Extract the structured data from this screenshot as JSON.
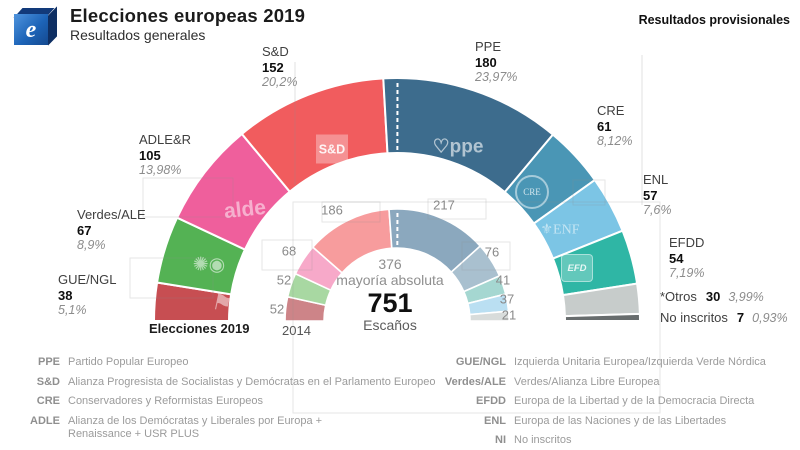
{
  "header": {
    "title": "Elecciones europeas 2019",
    "subtitle": "Resultados generales",
    "note": "Resultados provisionales",
    "logo_letter": "e"
  },
  "center": {
    "majority_value": "376",
    "majority_label": "mayoría absoluta",
    "total_value": "751",
    "total_label": "Escaños"
  },
  "chart_data": {
    "type": "hemicycle seat arc (double donut, 180°)",
    "title": "Elecciones europeas 2019 – Resultados generales",
    "total_seats": 751,
    "majority_seats": 376,
    "ring_axis_labels": {
      "outer": "Elecciones 2019",
      "inner": "2014"
    },
    "rings": [
      {
        "name": "Elecciones 2019",
        "position": "outer",
        "groups": [
          {
            "party": "GUE/NGL",
            "seats": 38,
            "pct": "5,1%",
            "color": "#c74e52"
          },
          {
            "party": "Verdes/ALE",
            "seats": 67,
            "pct": "8,9%",
            "color": "#54b254"
          },
          {
            "party": "ADLE&R",
            "seats": 105,
            "pct": "13,98%",
            "color": "#ef5f9c"
          },
          {
            "party": "S&D",
            "seats": 152,
            "pct": "20,2%",
            "color": "#f15c5e"
          },
          {
            "party": "PPE",
            "seats": 180,
            "pct": "23,97%",
            "color": "#3d6c8d"
          },
          {
            "party": "CRE",
            "seats": 61,
            "pct": "8,12%",
            "color": "#4a96b5"
          },
          {
            "party": "ENL",
            "seats": 57,
            "pct": "7,6%",
            "color": "#7cc5e5"
          },
          {
            "party": "EFDD",
            "seats": 54,
            "pct": "7,19%",
            "color": "#2fb6a5"
          },
          {
            "party": "*Otros",
            "seats": 30,
            "pct": "3,99%",
            "color": "#c7cccb"
          },
          {
            "party": "No inscritos",
            "seats": 7,
            "pct": "0,93%",
            "color": "#686d6e"
          }
        ]
      },
      {
        "name": "2014",
        "position": "inner",
        "groups": [
          {
            "party": "GUE/NGL",
            "seats": 52,
            "color": "#cd8488"
          },
          {
            "party": "Verdes/ALE",
            "seats": 52,
            "color": "#a8d8a2"
          },
          {
            "party": "ADLE",
            "seats": 68,
            "color": "#f7a9c9"
          },
          {
            "party": "S&D",
            "seats": 186,
            "color": "#f79c9d"
          },
          {
            "party": "PPE",
            "seats": 217,
            "color": "#8ba8be"
          },
          {
            "party": "CRE",
            "seats": 76,
            "color": "#a9c0cf"
          },
          {
            "party": "EFDD",
            "seats": 41,
            "color": "#a5d7d1"
          },
          {
            "party": "ENL",
            "seats": 37,
            "color": "#badff2"
          },
          {
            "party": "NI",
            "seats": 21,
            "color": "#d8dcdb"
          }
        ]
      }
    ]
  },
  "segment_logos": {
    "GUE/NGL": "⚑",
    "Verdes/ALE": "✺◉",
    "ADLE&R": "alde",
    "S&D": "S&D",
    "PPE": "♡ppe",
    "CRE": "CRE",
    "ENL": "⚜ENF",
    "EFDD": "EFD"
  },
  "legend": {
    "left": [
      {
        "abbr": "PPE",
        "desc": "Partido Popular Europeo"
      },
      {
        "abbr": "S&D",
        "desc": "Alianza Progresista de Socialistas y Demócratas en el Parlamento Europeo"
      },
      {
        "abbr": "CRE",
        "desc": "Conservadores y Reformistas Europeos"
      },
      {
        "abbr": "ADLE",
        "desc": "Alianza de los Demócratas y Liberales por Europa + Renaissance + USR PLUS"
      }
    ],
    "right": [
      {
        "abbr": "GUE/NGL",
        "desc": "Izquierda Unitaria Europea/Izquierda Verde Nórdica"
      },
      {
        "abbr": "Verdes/ALE",
        "desc": "Verdes/Alianza Libre Europea"
      },
      {
        "abbr": "EFDD",
        "desc": "Europa de la Libertad y de la Democracia Directa"
      },
      {
        "abbr": "ENL",
        "desc": "Europa de las Naciones y de las Libertades"
      },
      {
        "abbr": "NI",
        "desc": "No inscritos"
      }
    ]
  }
}
